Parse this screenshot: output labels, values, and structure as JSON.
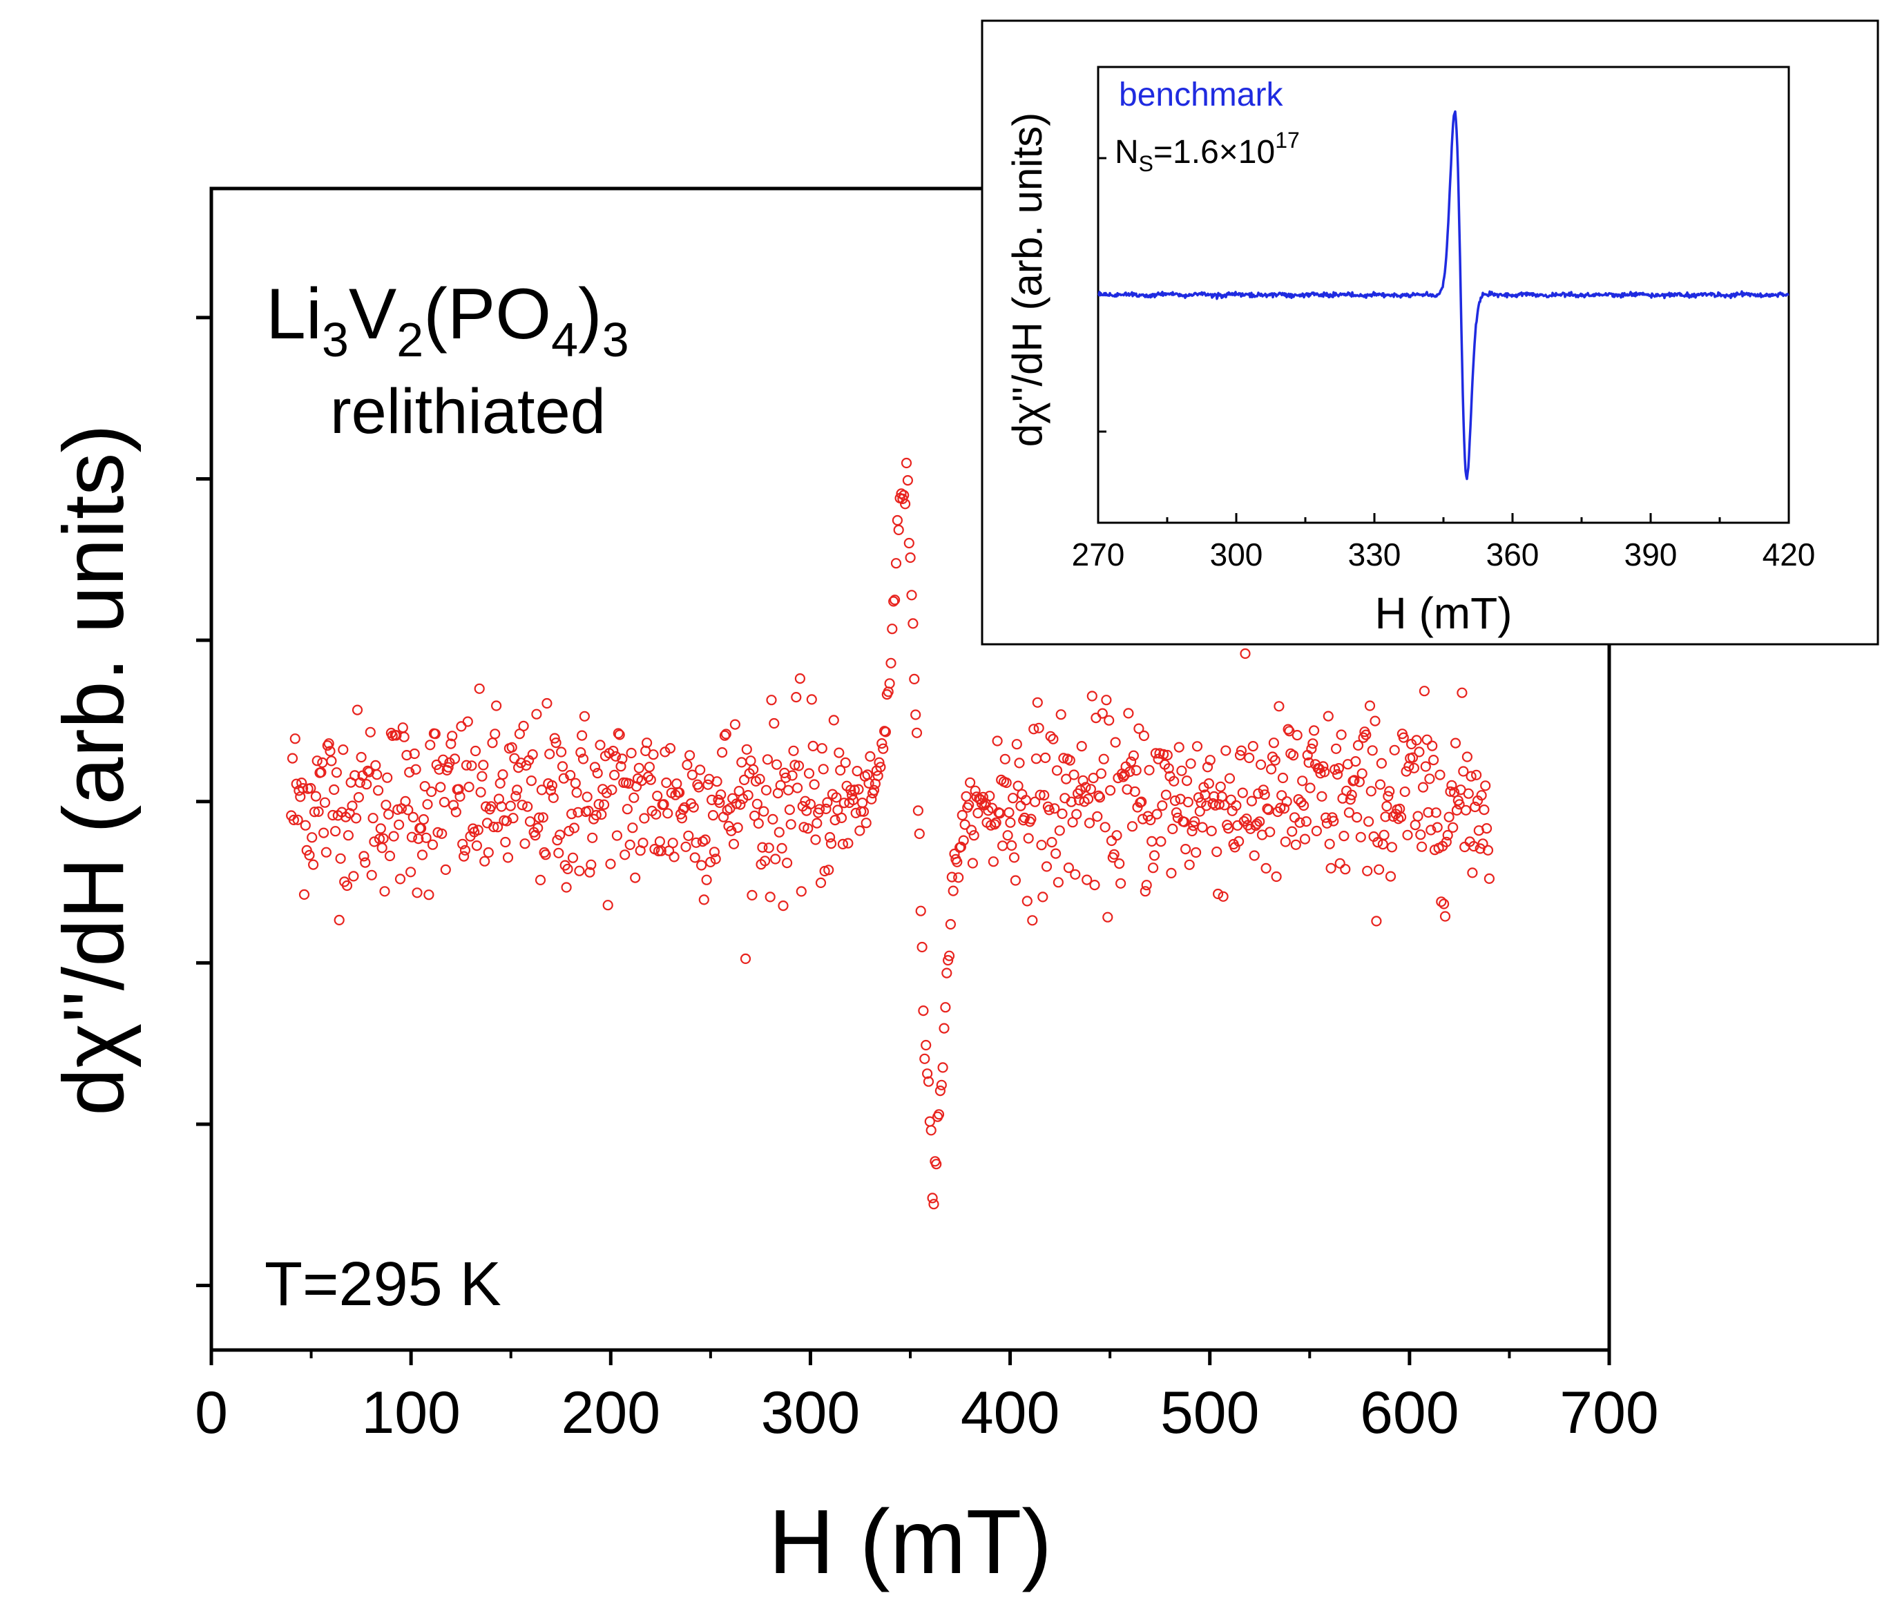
{
  "colors": {
    "main_marker": "#e8231e",
    "inset_line": "#1f2be0",
    "inset_label": "#1f2be0",
    "axis": "#000000"
  },
  "chart_data": [
    {
      "type": "scatter",
      "title": "",
      "xlabel": "H (mT)",
      "ylabel": "dχ''/dH (arb. units)",
      "xlim": [
        0,
        700
      ],
      "ylim": [
        -1.7,
        1.9
      ],
      "x_ticks": [
        "0",
        "100",
        "200",
        "300",
        "400",
        "500",
        "600",
        "700"
      ],
      "y_ticks_labeled": false,
      "grid": false,
      "legend": "none",
      "annotations": {
        "compound": {
          "prefix": "Li",
          "s1": "3",
          "mid": "V",
          "s2": "2",
          "open": "(PO",
          "s3": "4",
          "close": ")",
          "s4": "3"
        },
        "state": "relithiated",
        "temperature": "T=295 K"
      },
      "series": [
        {
          "marker": "open-circle",
          "range": [
            40,
            640
          ],
          "step_mT": 0.65,
          "baseline_noise": 0.14,
          "resonance_center": 354,
          "resonance_halfwidth": 7,
          "peak": {
            "x": 348,
            "y": 1.68
          },
          "trough": {
            "x": 361,
            "y": -1.5
          },
          "recovery_end": 392
        }
      ]
    },
    {
      "type": "line",
      "title": "",
      "xlabel": "H (mT)",
      "ylabel": "dχ''/dH (arb. units)",
      "xlim": [
        270,
        420
      ],
      "ylim": [
        -1.25,
        1.25
      ],
      "x_ticks": [
        "270",
        "300",
        "330",
        "360",
        "390",
        "420"
      ],
      "y_ticks_labeled": false,
      "grid": false,
      "legend": "none",
      "annotations": {
        "sample": "benchmark",
        "spins": {
          "prefix": "N",
          "sub": "S",
          "mid": "=1.6×10",
          "sup": "17"
        }
      },
      "series": [
        {
          "marker": "line",
          "peak": {
            "x": 347.5,
            "y": 1.0
          },
          "trough": {
            "x": 350.0,
            "y": -0.98
          },
          "halfwidth_mT": 1.3,
          "baseline": 0.0
        }
      ]
    }
  ]
}
